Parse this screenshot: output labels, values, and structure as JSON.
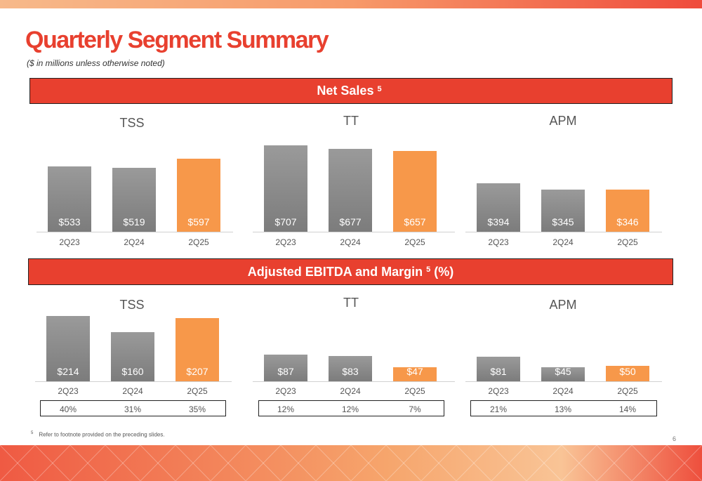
{
  "header": {
    "title": "Quarterly Segment Summary",
    "subtitle": "($ in millions unless otherwise noted)"
  },
  "banners": {
    "net_sales": "Net Sales",
    "net_sales_note": "5",
    "ebitda": "Adjusted EBITDA and Margin",
    "ebitda_note": "5",
    "ebitda_suffix": "(%)"
  },
  "colors": {
    "accent": "#e8402f",
    "prior_bar": "#8a8a8a",
    "current_bar": "#f7984a"
  },
  "chart_data": [
    {
      "id": "net_tss",
      "type": "bar",
      "title": "TSS",
      "categories": [
        "2Q23",
        "2Q24",
        "2Q25"
      ],
      "values": [
        533,
        519,
        597
      ],
      "labels": [
        "$533",
        "$519",
        "$597"
      ],
      "ylim": [
        0,
        800
      ]
    },
    {
      "id": "net_tt",
      "type": "bar",
      "title": "TT",
      "categories": [
        "2Q23",
        "2Q24",
        "2Q25"
      ],
      "values": [
        707,
        677,
        657
      ],
      "labels": [
        "$707",
        "$677",
        "$657"
      ],
      "ylim": [
        0,
        800
      ]
    },
    {
      "id": "net_apm",
      "type": "bar",
      "title": "APM",
      "categories": [
        "2Q23",
        "2Q24",
        "2Q25"
      ],
      "values": [
        394,
        345,
        346
      ],
      "labels": [
        "$394",
        "$345",
        "$346"
      ],
      "ylim": [
        0,
        800
      ]
    },
    {
      "id": "ebitda_tss",
      "type": "bar",
      "title": "TSS",
      "categories": [
        "2Q23",
        "2Q24",
        "2Q25"
      ],
      "values": [
        214,
        160,
        207
      ],
      "labels": [
        "$214",
        "$160",
        "$207"
      ],
      "margins": [
        "40%",
        "31%",
        "35%"
      ],
      "ylim": [
        0,
        230
      ]
    },
    {
      "id": "ebitda_tt",
      "type": "bar",
      "title": "TT",
      "categories": [
        "2Q23",
        "2Q24",
        "2Q25"
      ],
      "values": [
        87,
        83,
        47
      ],
      "labels": [
        "$87",
        "$83",
        "$47"
      ],
      "margins": [
        "12%",
        "12%",
        "7%"
      ],
      "ylim": [
        0,
        230
      ]
    },
    {
      "id": "ebitda_apm",
      "type": "bar",
      "title": "APM",
      "categories": [
        "2Q23",
        "2Q24",
        "2Q25"
      ],
      "values": [
        81,
        45,
        50
      ],
      "labels": [
        "$81",
        "$45",
        "$50"
      ],
      "margins": [
        "21%",
        "13%",
        "14%"
      ],
      "ylim": [
        0,
        230
      ]
    }
  ],
  "footnote": {
    "marker": "5",
    "text": "Refer to footnote provided on the preceding slides."
  },
  "page_number": "6"
}
